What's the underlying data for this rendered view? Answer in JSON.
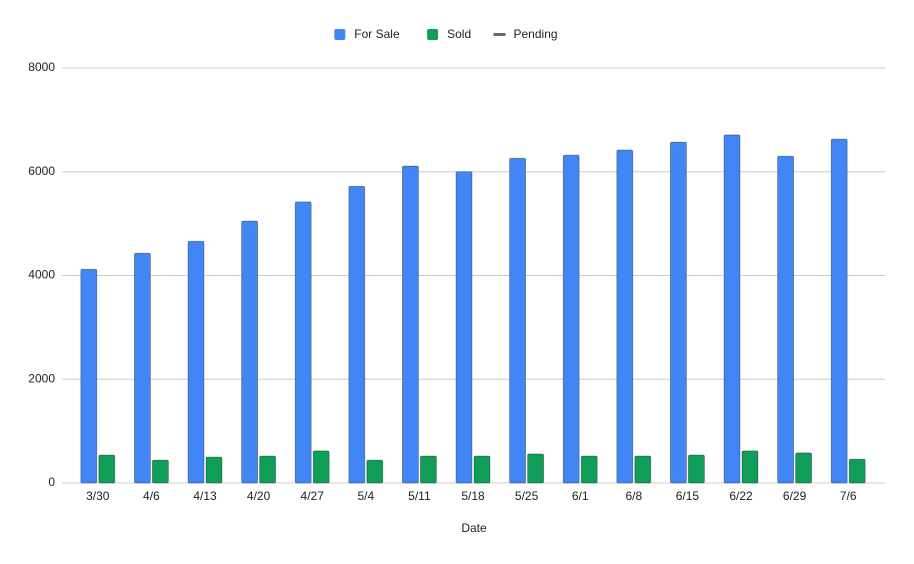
{
  "chart_data": {
    "type": "bar",
    "x_label": "Date",
    "categories": [
      "3/30",
      "4/6",
      "4/13",
      "4/20",
      "4/27",
      "5/4",
      "5/11",
      "5/18",
      "5/25",
      "6/1",
      "6/8",
      "6/15",
      "6/22",
      "6/29",
      "7/6"
    ],
    "series": [
      {
        "name": "For Sale",
        "color": "#4285f4",
        "values": [
          4120,
          4430,
          4660,
          5050,
          5420,
          5720,
          6110,
          6000,
          6260,
          6320,
          6420,
          6570,
          6710,
          6300,
          6630
        ]
      },
      {
        "name": "Sold",
        "color": "#0f9d58",
        "values": [
          540,
          440,
          500,
          520,
          620,
          440,
          520,
          520,
          560,
          520,
          520,
          540,
          620,
          580,
          460
        ]
      },
      {
        "name": "Pending",
        "color": "#666666",
        "type": "line",
        "values": [
          null,
          null,
          null,
          null,
          null,
          null,
          null,
          null,
          null,
          null,
          null,
          null,
          null,
          null,
          null
        ]
      }
    ],
    "ylim": [
      0,
      8000
    ],
    "yticks": [
      0,
      2000,
      4000,
      6000,
      8000
    ],
    "grid": true,
    "legend": "top"
  }
}
